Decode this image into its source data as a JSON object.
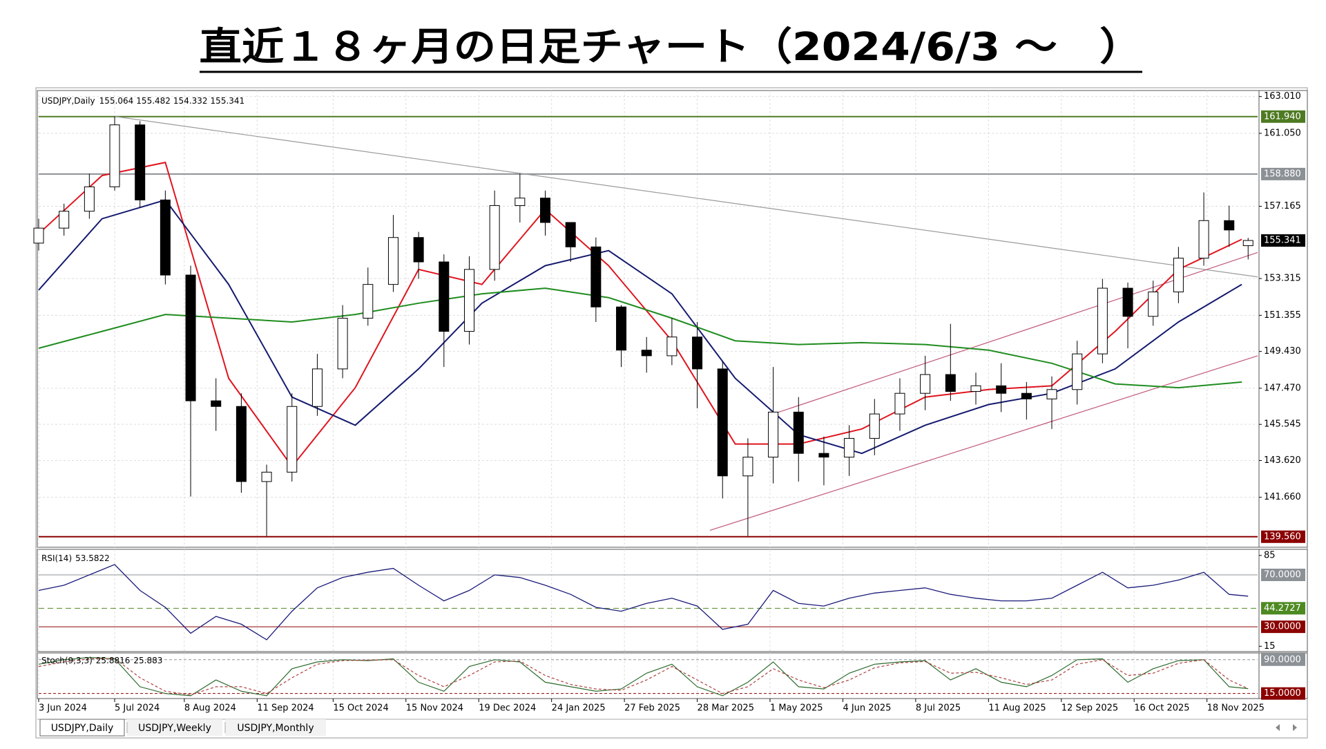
{
  "chart_data": {
    "type": "candlestick",
    "title": "直近１８ヶ月の日足チャート（2024/6/3 ～　）",
    "header": "USDJPY,Daily",
    "x": [
      0,
      8,
      16,
      24,
      32,
      40,
      48,
      56,
      64,
      72,
      80,
      88,
      96,
      104,
      112,
      120,
      128,
      136,
      144,
      152,
      160,
      168,
      176,
      184,
      192,
      200,
      208,
      216,
      224,
      232,
      240,
      248,
      256,
      264,
      272,
      280,
      288,
      296,
      304,
      312,
      320,
      328,
      336,
      344,
      352,
      360,
      368,
      376,
      382
    ],
    "open": [
      155.2,
      156.0,
      156.9,
      158.2,
      161.5,
      157.5,
      153.5,
      146.8,
      146.5,
      142.5,
      143.0,
      146.5,
      148.5,
      151.2,
      153.0,
      155.5,
      154.2,
      150.5,
      153.8,
      157.2,
      157.6,
      156.3,
      155.0,
      151.8,
      149.5,
      149.2,
      150.2,
      148.5,
      142.8,
      143.8,
      146.2,
      144.0,
      143.8,
      144.8,
      146.1,
      147.2,
      148.2,
      147.3,
      147.6,
      147.2,
      146.9,
      147.4,
      149.3,
      152.8,
      151.3,
      152.6,
      154.4,
      156.4,
      155.064
    ],
    "high": [
      156.5,
      157.3,
      158.9,
      161.95,
      161.7,
      158.0,
      154.0,
      148.0,
      147.2,
      143.4,
      147.2,
      149.3,
      151.9,
      153.9,
      156.7,
      155.8,
      154.6,
      154.5,
      158.0,
      158.9,
      158.0,
      156.3,
      155.5,
      151.9,
      150.2,
      151.2,
      151.0,
      148.9,
      144.8,
      148.6,
      147.0,
      144.9,
      145.5,
      146.9,
      148.0,
      149.2,
      150.9,
      148.3,
      148.8,
      147.8,
      148.1,
      150.0,
      153.3,
      153.1,
      153.2,
      155.0,
      157.9,
      157.2,
      155.482
    ],
    "low": [
      154.8,
      155.6,
      156.5,
      158.0,
      157.1,
      153.0,
      141.7,
      145.2,
      141.9,
      139.6,
      142.5,
      146.0,
      148.0,
      150.8,
      152.6,
      153.3,
      148.6,
      149.8,
      153.2,
      156.3,
      155.6,
      154.2,
      151.0,
      148.6,
      148.3,
      148.7,
      146.4,
      141.6,
      139.6,
      142.4,
      142.5,
      142.3,
      142.8,
      143.9,
      145.2,
      146.3,
      146.8,
      146.6,
      146.2,
      145.8,
      145.3,
      146.6,
      148.8,
      149.6,
      150.8,
      152.0,
      154.0,
      155.0,
      154.332
    ],
    "close": [
      156.0,
      156.9,
      158.2,
      161.5,
      157.5,
      153.5,
      146.8,
      146.5,
      142.5,
      143.0,
      146.5,
      148.5,
      151.2,
      153.0,
      155.5,
      154.2,
      150.5,
      153.8,
      157.2,
      157.6,
      156.3,
      155.0,
      151.8,
      149.5,
      149.2,
      150.2,
      148.5,
      142.8,
      143.8,
      146.2,
      144.0,
      143.8,
      144.8,
      146.1,
      147.2,
      148.2,
      147.3,
      147.6,
      147.2,
      146.9,
      147.4,
      149.3,
      152.8,
      151.3,
      152.6,
      154.4,
      156.4,
      155.9,
      155.341
    ],
    "xlim": [
      0,
      385
    ],
    "xticks": [
      {
        "value": 0,
        "label": "3 Jun 2024"
      },
      {
        "value": 24,
        "label": "5 Jul 2024"
      },
      {
        "value": 46,
        "label": "8 Aug 2024"
      },
      {
        "value": 69,
        "label": "11 Sep 2024"
      },
      {
        "value": 93,
        "label": "15 Oct 2024"
      },
      {
        "value": 116,
        "label": "15 Nov 2024"
      },
      {
        "value": 139,
        "label": "19 Dec 2024"
      },
      {
        "value": 162,
        "label": "24 Jan 2025"
      },
      {
        "value": 185,
        "label": "27 Feb 2025"
      },
      {
        "value": 208,
        "label": "28 Mar 2025"
      },
      {
        "value": 231,
        "label": "1 May 2025"
      },
      {
        "value": 254,
        "label": "4 Jun 2025"
      },
      {
        "value": 277,
        "label": "8 Jul 2025"
      },
      {
        "value": 300,
        "label": "11 Aug 2025"
      },
      {
        "value": 323,
        "label": "12 Sep 2025"
      },
      {
        "value": 346,
        "label": "16 Oct 2025"
      },
      {
        "value": 369,
        "label": "18 Nov 2025"
      }
    ],
    "ylim": [
      139.0,
      163.33
    ],
    "yticks": [
      {
        "value": 163.01,
        "label": "163.010"
      },
      {
        "value": 161.05,
        "label": "161.050"
      },
      {
        "value": 157.165,
        "label": "157.165"
      },
      {
        "value": 153.315,
        "label": "153.315"
      },
      {
        "value": 151.355,
        "label": "151.355"
      },
      {
        "value": 149.43,
        "label": "149.430"
      },
      {
        "value": 147.47,
        "label": "147.470"
      },
      {
        "value": 145.545,
        "label": "145.545"
      },
      {
        "value": 143.62,
        "label": "143.620"
      },
      {
        "value": 141.66,
        "label": "141.660"
      }
    ],
    "grid": true,
    "up_color": "#ffffff",
    "down_color": "#000000",
    "hlines": [
      {
        "value": 161.94,
        "label": "161.940",
        "color": "#4e7a22"
      },
      {
        "value": 158.88,
        "label": "158.880",
        "color": "#8c9196"
      },
      {
        "value": 139.56,
        "label": "139.560",
        "color": "#8b0000"
      }
    ],
    "trendlines": [
      {
        "x": [
          24,
          385
        ],
        "y": [
          161.95,
          153.4
        ],
        "color": "#9a9a9a"
      },
      {
        "x": [
          232,
          385
        ],
        "y": [
          146.1,
          154.7
        ],
        "color": "#c0587a"
      },
      {
        "x": [
          212,
          385
        ],
        "y": [
          139.9,
          149.2
        ],
        "color": "#c0587a"
      }
    ],
    "ma": {
      "x": [
        0,
        20,
        40,
        60,
        80,
        100,
        120,
        140,
        160,
        180,
        200,
        220,
        240,
        260,
        280,
        300,
        320,
        340,
        360,
        380
      ],
      "series": [
        {
          "color": "#e0141e",
          "values": [
            155.7,
            158.8,
            159.5,
            148.0,
            143.3,
            147.5,
            153.8,
            153.0,
            157.0,
            154.0,
            150.0,
            144.5,
            144.5,
            145.3,
            147.0,
            147.4,
            147.6,
            150.5,
            153.8,
            155.4
          ]
        },
        {
          "color": "#141a6e",
          "values": [
            152.7,
            156.5,
            157.5,
            153.0,
            147.0,
            145.5,
            148.5,
            152.0,
            154.0,
            154.8,
            152.5,
            148.0,
            145.0,
            144.0,
            145.5,
            146.6,
            147.2,
            148.5,
            151.0,
            153.0
          ]
        },
        {
          "color": "#1e8c1e",
          "values": [
            149.6,
            150.5,
            151.4,
            151.2,
            151.0,
            151.4,
            152.0,
            152.5,
            152.8,
            152.3,
            151.2,
            150.0,
            149.8,
            149.9,
            149.8,
            149.5,
            148.8,
            147.7,
            147.5,
            147.8
          ]
        }
      ]
    },
    "rsi": {
      "label": "RSI(14)",
      "color": "#1a1a7a",
      "values": [
        58,
        62,
        70,
        78,
        58,
        45,
        25,
        38,
        32,
        20,
        42,
        60,
        68,
        72,
        75,
        62,
        50,
        58,
        70,
        68,
        62,
        55,
        45,
        42,
        48,
        52,
        46,
        28,
        32,
        58,
        48,
        46,
        52,
        56,
        58,
        60,
        55,
        52,
        50,
        50,
        52,
        62,
        72,
        60,
        62,
        66,
        72,
        55,
        53.5822
      ],
      "ylim": [
        10.9,
        89.7
      ],
      "yticks": [
        85,
        15
      ],
      "levels": [
        {
          "value": 70,
          "label": "70.0000",
          "color": "#8c9196"
        },
        {
          "value": 44.2727,
          "label": "44.2727",
          "color": "#4e8a22"
        },
        {
          "value": 30,
          "label": "30.0000",
          "color": "#8b0000"
        }
      ]
    },
    "stoch": {
      "label": "Stoch(9,3,3)",
      "k_color": "#2d6b2d",
      "d_color": "#b04040",
      "k": [
        80,
        90,
        95,
        92,
        30,
        15,
        10,
        45,
        20,
        10,
        70,
        85,
        90,
        88,
        92,
        40,
        20,
        75,
        90,
        85,
        40,
        30,
        20,
        25,
        60,
        80,
        30,
        10,
        40,
        85,
        30,
        25,
        60,
        80,
        85,
        88,
        45,
        70,
        40,
        30,
        55,
        90,
        92,
        40,
        70,
        88,
        90,
        30,
        25.8816
      ],
      "d": [
        75,
        85,
        92,
        93,
        50,
        20,
        12,
        30,
        30,
        15,
        50,
        80,
        88,
        89,
        90,
        55,
        30,
        55,
        85,
        87,
        55,
        35,
        25,
        22,
        45,
        75,
        45,
        15,
        30,
        70,
        45,
        28,
        45,
        72,
        83,
        86,
        60,
        62,
        50,
        35,
        45,
        80,
        90,
        55,
        60,
        82,
        90,
        45,
        25.883
      ],
      "ylim": [
        3.75,
        105
      ],
      "levels": [
        {
          "value": 90,
          "label": "90.0000",
          "color": "#8c9196"
        },
        {
          "value": 15,
          "label": "15.0000",
          "color": "#8b0000"
        }
      ]
    },
    "tabs": [
      "USDJPY,Daily",
      "USDJPY,Weekly",
      "USDJPY,Monthly"
    ]
  }
}
